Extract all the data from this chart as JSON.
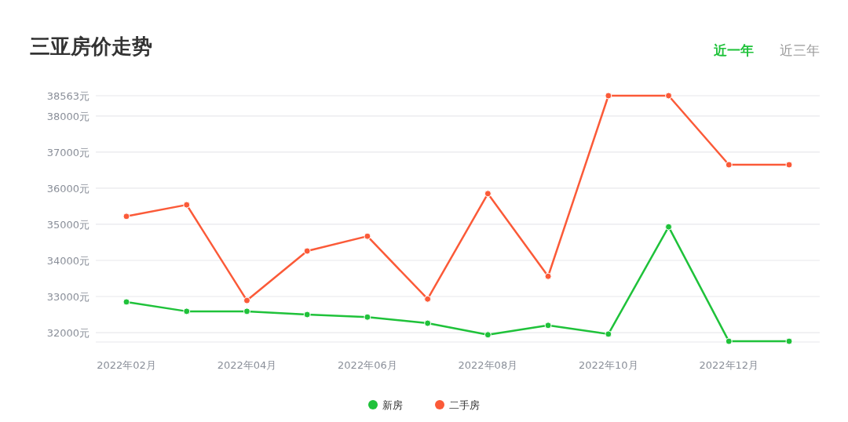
{
  "chart_data": {
    "type": "line",
    "title": "三亚房价走势",
    "annotations": [
      "近一年",
      "近三年"
    ],
    "categories": [
      "2022年02月",
      null,
      "2022年04月",
      null,
      "2022年06月",
      null,
      "2022年08月",
      null,
      "2022年10月",
      null,
      "2022年12月",
      null
    ],
    "series": [
      {
        "name": "新房",
        "color": "#1fc23a",
        "values": [
          32850,
          32590,
          32590,
          32500,
          32430,
          32260,
          31940,
          32200,
          31960,
          34930,
          31760,
          31760
        ]
      },
      {
        "name": "二手房",
        "color": "#fb5a38",
        "values": [
          35220,
          35540,
          32890,
          34260,
          34670,
          32930,
          35850,
          33560,
          38563,
          38563,
          36650,
          36650
        ]
      }
    ],
    "ylim": [
      31740,
      38563
    ],
    "yticks": [
      {
        "value": 32000,
        "label": "32000元"
      },
      {
        "value": 33000,
        "label": "33000元"
      },
      {
        "value": 34000,
        "label": "34000元"
      },
      {
        "value": 35000,
        "label": "35000元"
      },
      {
        "value": 36000,
        "label": "36000元"
      },
      {
        "value": 37000,
        "label": "37000元"
      },
      {
        "value": 38000,
        "label": "38000元"
      },
      {
        "value": 38563,
        "label": "38563元"
      }
    ],
    "grid": "y",
    "legend": "bottom",
    "marker": "circle",
    "line_style": "solid"
  }
}
